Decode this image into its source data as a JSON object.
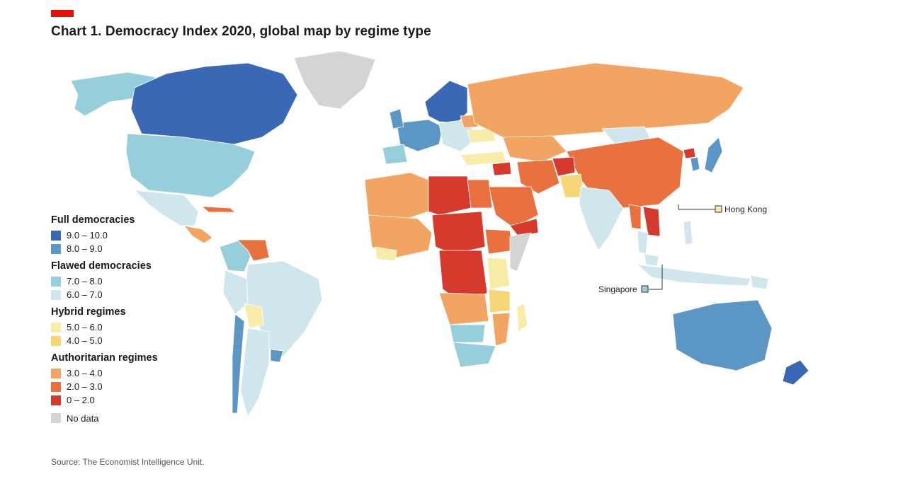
{
  "header": {
    "title": "Chart 1. Democracy Index 2020, global map by regime type",
    "accent_color": "#e3120b"
  },
  "legend": {
    "groups": [
      {
        "title": "Full democracies",
        "items": [
          {
            "label": "9.0 – 10.0",
            "color": "#3a68b4"
          },
          {
            "label": "8.0 – 9.0",
            "color": "#5b96c4"
          }
        ]
      },
      {
        "title": "Flawed democracies",
        "items": [
          {
            "label": "7.0 – 8.0",
            "color": "#97cedb"
          },
          {
            "label": "6.0 – 7.0",
            "color": "#cfe6ec"
          }
        ]
      },
      {
        "title": "Hybrid regimes",
        "items": [
          {
            "label": "5.0 – 6.0",
            "color": "#f8eda8"
          },
          {
            "label": "4.0 – 5.0",
            "color": "#f7d67a"
          }
        ]
      },
      {
        "title": "Authoritarian regimes",
        "items": [
          {
            "label": "3.0 – 4.0",
            "color": "#f2a462"
          },
          {
            "label": "2.0 – 3.0",
            "color": "#e8713f"
          },
          {
            "label": "0 – 2.0",
            "color": "#d63a2c"
          }
        ]
      }
    ],
    "no_data": {
      "label": "No data",
      "color": "#d4d4d2"
    }
  },
  "callouts": {
    "hong_kong": "Hong Kong",
    "singapore": "Singapore"
  },
  "source": "Source: The Economist Intelligence Unit."
}
